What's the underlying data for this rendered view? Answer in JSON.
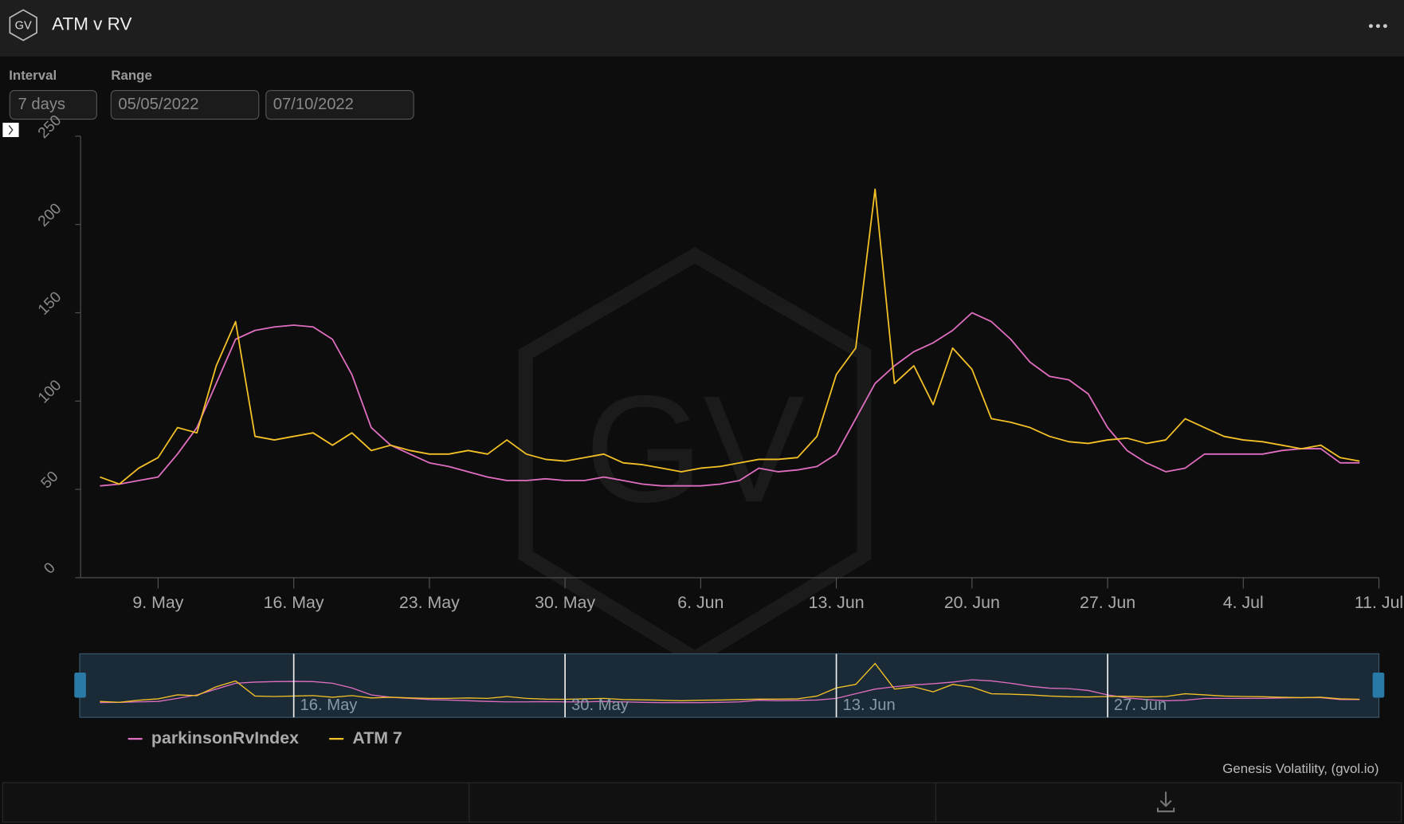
{
  "header": {
    "logo": "GV",
    "title": "ATM v RV"
  },
  "controls": {
    "interval_label": "Interval",
    "interval_value": "7 days",
    "range_label": "Range",
    "range_start": "05/05/2022",
    "range_end": "07/10/2022"
  },
  "credits": "Genesis Volatility, (gvol.io)",
  "chart_data": {
    "type": "line",
    "x": [
      "2022-05-06",
      "2022-05-07",
      "2022-05-08",
      "2022-05-09",
      "2022-05-10",
      "2022-05-11",
      "2022-05-12",
      "2022-05-13",
      "2022-05-14",
      "2022-05-15",
      "2022-05-16",
      "2022-05-17",
      "2022-05-18",
      "2022-05-19",
      "2022-05-20",
      "2022-05-21",
      "2022-05-22",
      "2022-05-23",
      "2022-05-24",
      "2022-05-25",
      "2022-05-26",
      "2022-05-27",
      "2022-05-28",
      "2022-05-29",
      "2022-05-30",
      "2022-05-31",
      "2022-06-01",
      "2022-06-02",
      "2022-06-03",
      "2022-06-04",
      "2022-06-05",
      "2022-06-06",
      "2022-06-07",
      "2022-06-08",
      "2022-06-09",
      "2022-06-10",
      "2022-06-11",
      "2022-06-12",
      "2022-06-13",
      "2022-06-14",
      "2022-06-15",
      "2022-06-16",
      "2022-06-17",
      "2022-06-18",
      "2022-06-19",
      "2022-06-20",
      "2022-06-21",
      "2022-06-22",
      "2022-06-23",
      "2022-06-24",
      "2022-06-25",
      "2022-06-26",
      "2022-06-27",
      "2022-06-28",
      "2022-06-29",
      "2022-06-30",
      "2022-07-01",
      "2022-07-02",
      "2022-07-03",
      "2022-07-04",
      "2022-07-05",
      "2022-07-06",
      "2022-07-07",
      "2022-07-08",
      "2022-07-09",
      "2022-07-10"
    ],
    "series": [
      {
        "name": "parkinsonRvIndex",
        "color": "#e06ec0",
        "values": [
          52,
          53,
          55,
          57,
          70,
          85,
          110,
          135,
          140,
          142,
          143,
          142,
          135,
          115,
          85,
          75,
          70,
          65,
          63,
          60,
          57,
          55,
          55,
          56,
          55,
          55,
          57,
          55,
          53,
          52,
          52,
          52,
          53,
          55,
          62,
          60,
          61,
          63,
          70,
          90,
          110,
          120,
          128,
          133,
          140,
          150,
          145,
          135,
          122,
          114,
          112,
          104,
          85,
          72,
          65,
          60,
          62,
          70,
          70,
          70,
          70,
          72,
          73,
          73,
          65,
          65
        ]
      },
      {
        "name": "ATM 7",
        "color": "#f3c027",
        "values": [
          57,
          53,
          62,
          68,
          85,
          82,
          120,
          145,
          80,
          78,
          80,
          82,
          75,
          82,
          72,
          75,
          72,
          70,
          70,
          72,
          70,
          78,
          70,
          67,
          66,
          68,
          70,
          65,
          64,
          62,
          60,
          62,
          63,
          65,
          67,
          67,
          68,
          80,
          115,
          130,
          220,
          110,
          120,
          98,
          130,
          118,
          90,
          88,
          85,
          80,
          77,
          76,
          78,
          79,
          76,
          78,
          90,
          85,
          80,
          78,
          77,
          75,
          73,
          75,
          68,
          66
        ]
      }
    ],
    "xlim": [
      "2022-05-05",
      "2022-07-11"
    ],
    "xticks": [
      {
        "value": "2022-05-09",
        "label": "9. May"
      },
      {
        "value": "2022-05-16",
        "label": "16. May"
      },
      {
        "value": "2022-05-23",
        "label": "23. May"
      },
      {
        "value": "2022-05-30",
        "label": "30. May"
      },
      {
        "value": "2022-06-06",
        "label": "6. Jun"
      },
      {
        "value": "2022-06-13",
        "label": "13. Jun"
      },
      {
        "value": "2022-06-20",
        "label": "20. Jun"
      },
      {
        "value": "2022-06-27",
        "label": "27. Jun"
      },
      {
        "value": "2022-07-04",
        "label": "4. Jul"
      },
      {
        "value": "2022-07-11",
        "label": "11. Jul"
      }
    ],
    "ylim": [
      0,
      250
    ],
    "yticks": [
      0,
      50,
      100,
      150,
      200,
      250
    ],
    "navigator": {
      "xticks": [
        {
          "value": "2022-05-16",
          "label": "16. May"
        },
        {
          "value": "2022-05-30",
          "label": "30. May"
        },
        {
          "value": "2022-06-13",
          "label": "13. Jun"
        },
        {
          "value": "2022-06-27",
          "label": "27. Jun"
        }
      ]
    }
  }
}
